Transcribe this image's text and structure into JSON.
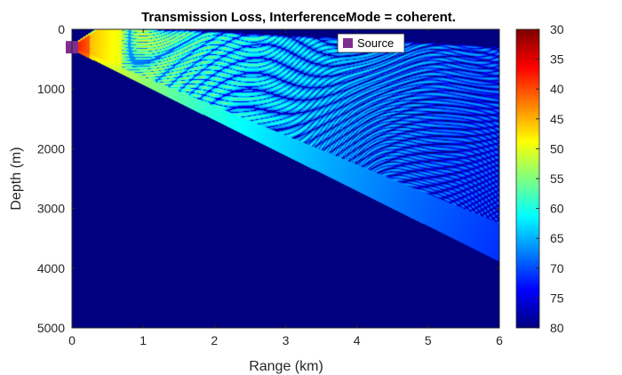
{
  "chart_data": {
    "type": "heatmap",
    "title": "Transmission Loss, InterferenceMode = coherent.",
    "xlabel": "Range (km)",
    "ylabel": "Depth (m)",
    "xlim": [
      0,
      6
    ],
    "ylim": [
      0,
      5000
    ],
    "y_reversed": true,
    "xticks": [
      "0",
      "1",
      "2",
      "3",
      "4",
      "5",
      "6"
    ],
    "yticks": [
      "0",
      "1000",
      "2000",
      "3000",
      "4000",
      "5000"
    ],
    "colorbar": {
      "colormap": "jet",
      "reversed": true,
      "limits": [
        30,
        80
      ],
      "ticks": [
        "30",
        "35",
        "40",
        "45",
        "50",
        "55",
        "60",
        "65",
        "70",
        "75",
        "80"
      ]
    },
    "source": {
      "label": "Source",
      "range_km": 0,
      "depth_m": 300,
      "color": "#7e2f8e"
    },
    "beam": {
      "description": "downward-refracting ray fan; loss increases with range, upper region shows coherent interference fringes",
      "upper_edge_at_6km_m": 600,
      "lower_edge_at_6km_m": 3850,
      "fringe_limit_at_6km_m": 3250,
      "background_loss_db": 80
    },
    "legend": {
      "position": "top-right",
      "entries": [
        "Source"
      ]
    }
  }
}
